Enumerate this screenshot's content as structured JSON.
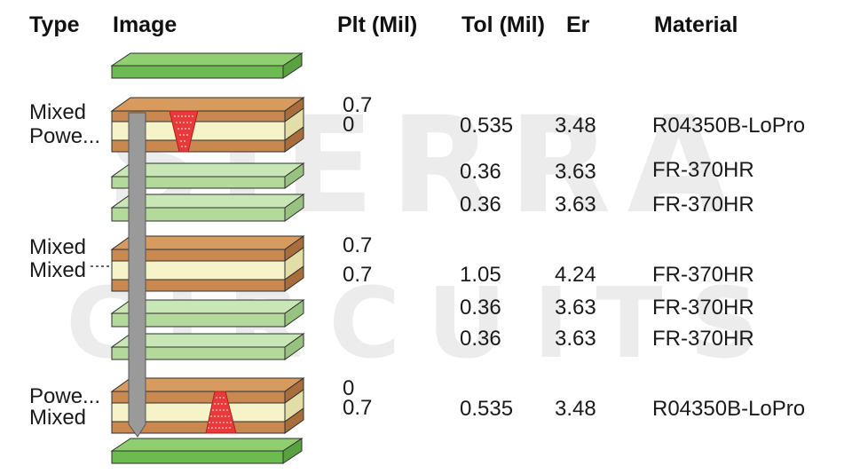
{
  "watermark": {
    "line1": "SIERRA",
    "line2": "CIRCUITS"
  },
  "headers": {
    "type": "Type",
    "image": "Image",
    "plt": "Plt (Mil)",
    "tol": "Tol (Mil)",
    "er": "Er",
    "material": "Material"
  },
  "types": {
    "t1a": "Mixed",
    "t1b": "Powe...",
    "t2a": "Mixed",
    "t2b": "Mixed",
    "t3a": "Powe...",
    "t3b": "Mixed"
  },
  "plating": {
    "p1a": "0.7",
    "p1b": "0",
    "p2a": "0.7",
    "p2b": "0.7",
    "p3a": "0",
    "p3b": "0.7"
  },
  "rows": [
    {
      "tol": "0.535",
      "er": "3.48",
      "material": "R04350B-LoPro"
    },
    {
      "tol": "0.36",
      "er": "3.63",
      "material": "FR-370HR"
    },
    {
      "tol": "0.36",
      "er": "3.63",
      "material": "FR-370HR"
    },
    {
      "tol": "1.05",
      "er": "4.24",
      "material": "FR-370HR"
    },
    {
      "tol": "0.36",
      "er": "3.63",
      "material": "FR-370HR"
    },
    {
      "tol": "0.36",
      "er": "3.63",
      "material": "FR-370HR"
    },
    {
      "tol": "0.535",
      "er": "3.48",
      "material": "R04350B-LoPro"
    }
  ],
  "colors": {
    "mask_top": "#8fcf70",
    "mask_front": "#6dbb50",
    "mask_side": "#5aa13f",
    "prepreg_top": "#c9e6b6",
    "prepreg_front": "#b3d99b",
    "prepreg_side": "#98c27f",
    "copper_top": "#d79a5f",
    "copper_front": "#c8884f",
    "copper_side": "#a86d3a",
    "core": "#f6f3c8",
    "core_side": "#e2dea6",
    "via": "#9a9a9a",
    "via_edge": "#555555",
    "microvia": "#e83a3a"
  }
}
